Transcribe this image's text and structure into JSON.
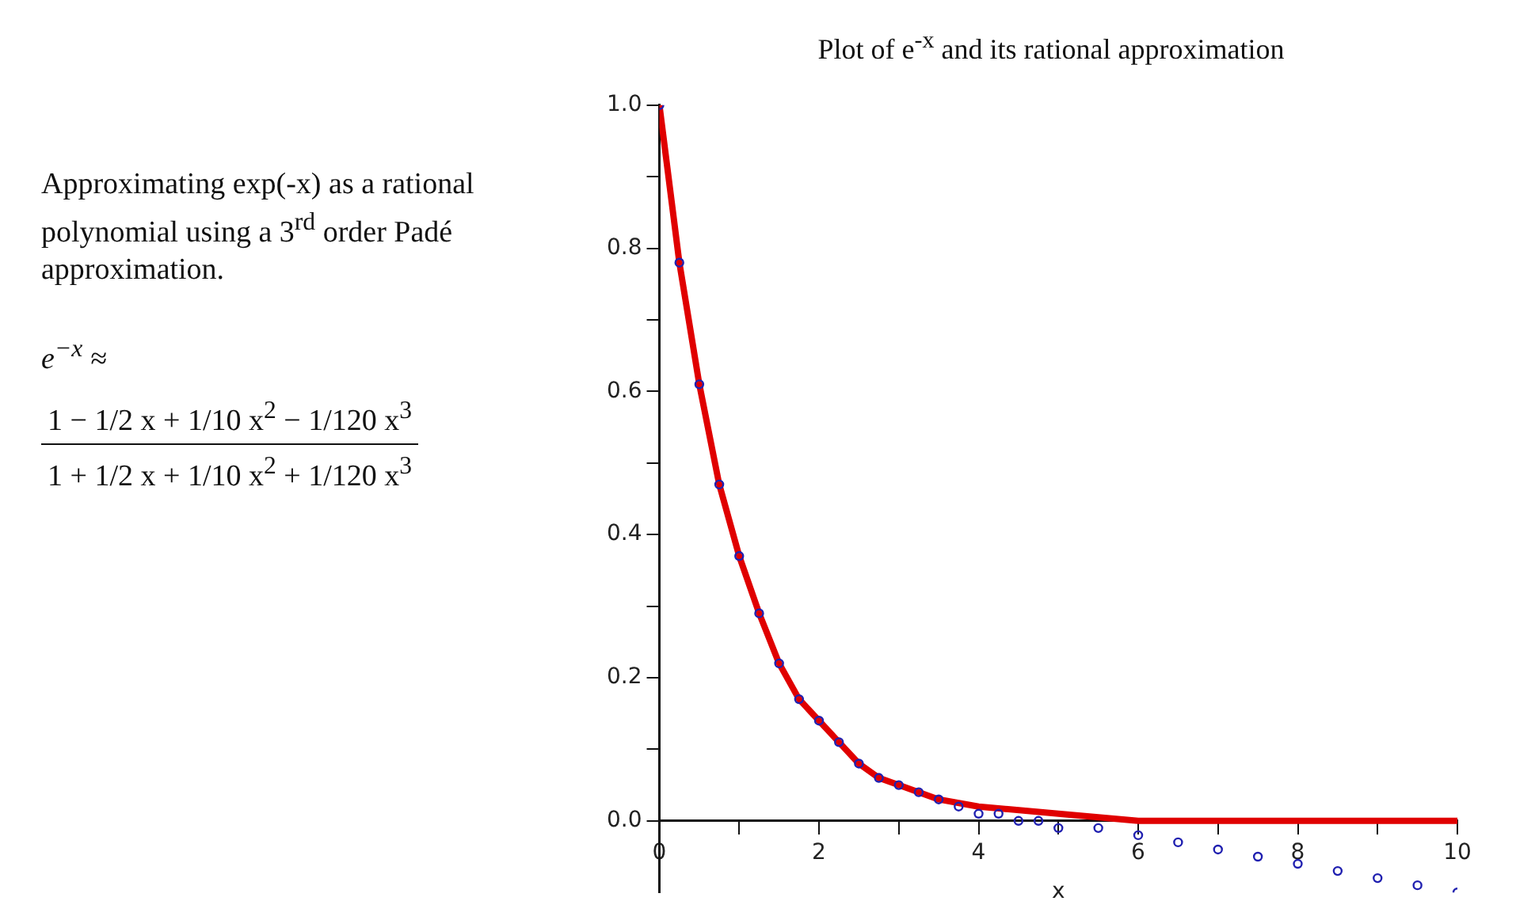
{
  "chart_data": {
    "type": "line",
    "title": "Plot of e$^{-x}$ and its rational approximation",
    "xlabel": "x",
    "annotations": [
      "Approximating exp(-x) as a rational polynomial using a 3$^{rd}$ order Padé approximation.",
      "e$^{−x}$ ≈",
      "1 − 1/2 x + 1/10 x$^{2}$ − 1/120 x$^{3}$",
      "1 + 1/2 x + 1/10 x$^{2}$ + 1/120 x$^{3}$"
    ],
    "xlim": [
      0,
      10
    ],
    "xticks": [
      0,
      {
        "value": 1,
        "label": null
      },
      2,
      {
        "value": 3,
        "label": null
      },
      4,
      {
        "value": 5,
        "label": null
      },
      6,
      {
        "value": 7,
        "label": null
      },
      8,
      {
        "value": 9,
        "label": null
      },
      10
    ],
    "ylim": [
      -0.1,
      1.0
    ],
    "yticks": [
      {
        "value": 0,
        "label": "0.0"
      },
      {
        "value": 0.1,
        "label": null
      },
      {
        "value": 0.2,
        "label": "0.2"
      },
      {
        "value": 0.3,
        "label": null
      },
      {
        "value": 0.4,
        "label": "0.4"
      },
      {
        "value": 0.5,
        "label": null
      },
      {
        "value": 0.6,
        "label": "0.6"
      },
      {
        "value": 0.7,
        "label": null
      },
      {
        "value": 0.8,
        "label": "0.8"
      },
      {
        "value": 0.9,
        "label": null
      },
      {
        "value": 1.0,
        "label": "1.0"
      }
    ],
    "grid": false,
    "legend": false,
    "series": [
      {
        "type": "line",
        "color": "#e00000",
        "marker": "none",
        "line_style": "solid",
        "x": [
          0,
          0.25,
          0.5,
          0.75,
          1,
          1.25,
          1.5,
          1.75,
          2,
          2.25,
          2.5,
          2.75,
          3,
          3.5,
          4,
          5,
          6,
          8,
          10
        ],
        "values": [
          1,
          0.78,
          0.61,
          0.47,
          0.37,
          0.29,
          0.22,
          0.17,
          0.14,
          0.11,
          0.08,
          0.06,
          0.05,
          0.03,
          0.02,
          0.01,
          0,
          0,
          0
        ]
      },
      {
        "type": "scatter",
        "color": "#2020b0",
        "marker": "circle",
        "x": [
          0,
          0.25,
          0.5,
          0.75,
          1,
          1.25,
          1.5,
          1.75,
          2,
          2.25,
          2.5,
          2.75,
          3,
          3.25,
          3.5,
          3.75,
          4,
          4.25,
          4.5,
          4.75,
          5,
          5.5,
          6,
          6.5,
          7,
          7.5,
          8,
          8.5,
          9,
          9.5,
          10
        ],
        "values": [
          1,
          0.78,
          0.61,
          0.47,
          0.37,
          0.29,
          0.22,
          0.17,
          0.14,
          0.11,
          0.08,
          0.06,
          0.05,
          0.04,
          0.03,
          0.02,
          0.01,
          0.01,
          0,
          0,
          -0.01,
          -0.01,
          -0.02,
          -0.03,
          -0.04,
          -0.05,
          -0.06,
          -0.07,
          -0.08,
          -0.09,
          -0.1
        ]
      }
    ]
  }
}
